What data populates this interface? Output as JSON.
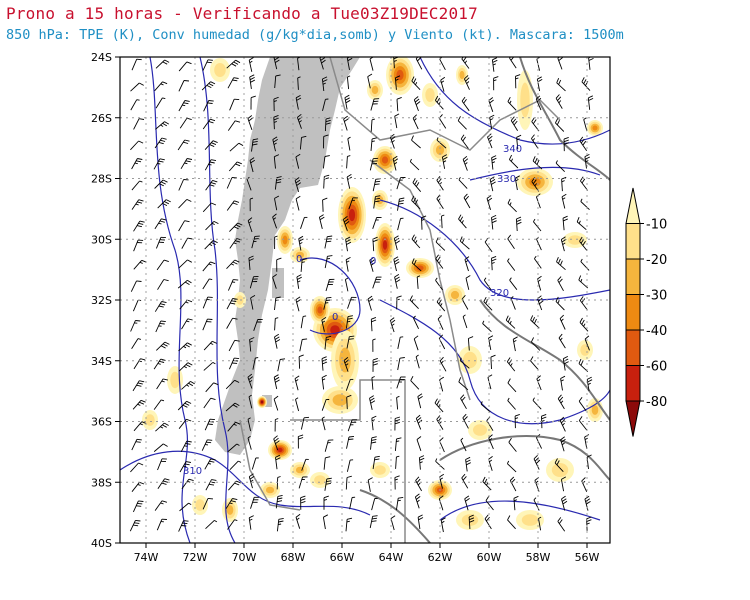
{
  "header": {
    "title": "Prono a 15 horas - Verificando a Tue03Z19DEC2017",
    "subtitle": "850 hPa: TPE (K), Conv humedad (g/kg*dia,somb) y Viento (kt). Mascara: 1500m"
  },
  "axes": {
    "lat_labels": [
      "24S",
      "26S",
      "28S",
      "30S",
      "32S",
      "34S",
      "36S",
      "38S",
      "40S"
    ],
    "lon_labels": [
      "74W",
      "72W",
      "70W",
      "68W",
      "66W",
      "64W",
      "62W",
      "60W",
      "58W",
      "56W"
    ]
  },
  "colorbar": {
    "labels": [
      "-10",
      "-20",
      "-30",
      "-40",
      "-60",
      "-80"
    ],
    "colors": [
      "#fff5b8",
      "#ffe08a",
      "#f5b53d",
      "#ee8a12",
      "#e05a10",
      "#c8200e",
      "#8c0a0a"
    ]
  },
  "isotherm_labels": [
    "340",
    "330",
    "320",
    "310",
    "0",
    "0",
    "0"
  ],
  "colors": {
    "terrain_mask": "#c0c0c0",
    "isolines": "#2a2ab0",
    "coast": "#777777"
  }
}
